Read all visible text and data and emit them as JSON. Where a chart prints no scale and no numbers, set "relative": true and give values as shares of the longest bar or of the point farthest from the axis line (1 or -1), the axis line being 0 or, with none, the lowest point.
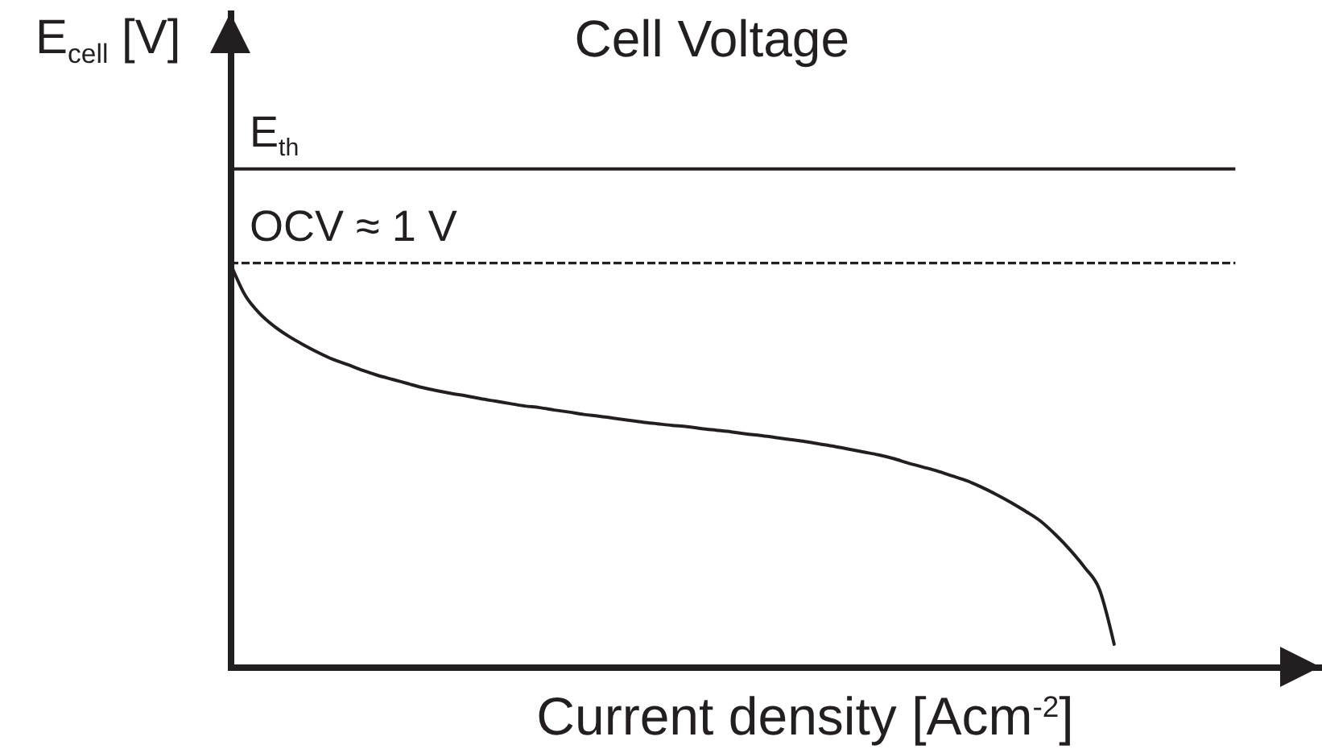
{
  "chart_data": {
    "type": "line",
    "title": "Cell Voltage",
    "xlabel": "Current density [Acm$^{-2}$]",
    "ylabel": "E$_{cell}$ [V]",
    "relative": true,
    "categories": [
      null,
      null,
      null,
      null,
      null,
      null,
      null,
      null,
      null,
      null,
      null,
      null,
      null,
      null,
      null,
      null,
      null,
      null,
      null,
      null,
      null,
      null,
      null,
      null,
      null,
      null,
      null,
      null,
      null,
      null,
      null,
      null,
      null,
      null,
      null,
      null,
      null,
      null,
      null,
      null,
      null,
      null,
      null,
      null,
      null,
      null,
      null,
      null,
      null,
      null,
      null,
      null,
      null,
      null,
      null,
      null,
      null,
      null,
      null,
      null,
      null,
      null,
      null,
      null,
      null,
      null,
      null,
      null,
      null,
      null,
      null,
      null,
      null,
      null,
      null
    ],
    "series": [
      {
        "color": "#231f20",
        "line_style": "solid",
        "values": [
          1,
          0.921,
          0.875,
          0.843,
          0.818,
          0.797,
          0.778,
          0.761,
          0.748,
          0.734,
          0.722,
          0.712,
          0.702,
          0.692,
          0.684,
          0.677,
          0.671,
          0.664,
          0.658,
          0.652,
          0.646,
          0.642,
          0.636,
          0.631,
          0.625,
          0.621,
          0.616,
          0.611,
          0.606,
          0.602,
          0.598,
          0.595,
          0.59,
          0.586,
          0.582,
          0.577,
          0.573,
          0.568,
          0.563,
          0.558,
          0.552,
          0.546,
          0.539,
          0.532,
          0.525,
          0.516,
          0.505,
          0.495,
          0.485,
          0.473,
          0.461,
          0.445,
          0.427,
          0.407,
          0.385,
          0.361,
          0.328,
          0.29,
          0.246,
          0.192,
          0.056,
          null,
          null,
          null,
          null,
          null,
          null,
          null,
          null,
          null,
          null,
          null,
          null,
          null,
          null
        ]
      }
    ],
    "ref_lines": [
      {
        "axis": "y",
        "value": 1.233,
        "label": "E$_{th}$",
        "color": "#231f20",
        "line_style": "solid"
      },
      {
        "axis": "y",
        "value": 1,
        "label": "OCV ≈ 1 V",
        "color": "#231f20",
        "line_style": "dashed"
      }
    ]
  }
}
